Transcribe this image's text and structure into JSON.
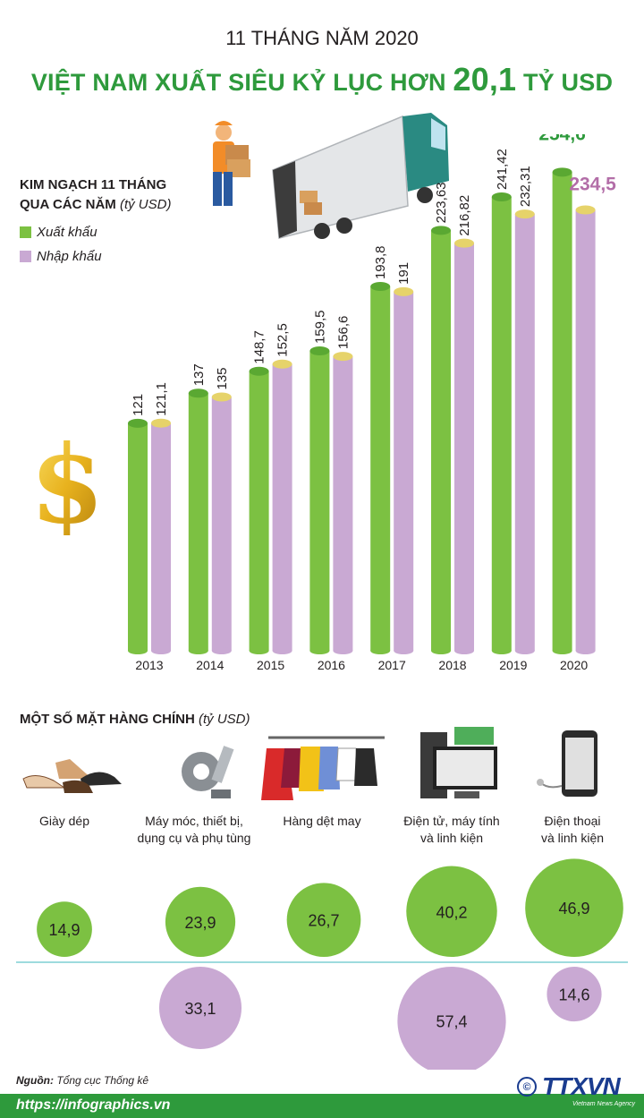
{
  "header": {
    "kicker": "11 THÁNG NĂM 2020",
    "headline_prefix": "VIỆT NAM XUẤT SIÊU KỶ LỤC HƠN",
    "headline_value": "20,1",
    "headline_suffix": "TỶ USD"
  },
  "chart_data": [
    {
      "type": "bar",
      "title": "KIM NGẠCH 11 THÁNG QUA CÁC NĂM",
      "title_line1": "KIM NGẠCH 11 THÁNG",
      "title_line2": "QUA CÁC NĂM",
      "unit": "(tỷ USD)",
      "categories": [
        "2013",
        "2014",
        "2015",
        "2016",
        "2017",
        "2018",
        "2019",
        "2020"
      ],
      "series": [
        {
          "name": "Xuất khẩu",
          "color": "#7cc142",
          "values": [
            121,
            137,
            148.7,
            159.5,
            193.8,
            223.63,
            241.42,
            254.6
          ],
          "labels": [
            "121",
            "137",
            "148,7",
            "159,5",
            "193,8",
            "223,63",
            "241,42",
            "254,6"
          ]
        },
        {
          "name": "Nhập khẩu",
          "color": "#c9a9d3",
          "values": [
            121.1,
            135,
            152.5,
            156.6,
            191,
            216.82,
            232.31,
            234.5
          ],
          "labels": [
            "121,1",
            "135",
            "152,5",
            "156,6",
            "191",
            "216,82",
            "232,31",
            "234,5"
          ]
        }
      ],
      "cap_color": "#e6d36a",
      "highlight_colors": {
        "export": "#2e9a3c",
        "import": "#b36ea8"
      }
    },
    {
      "type": "bubble",
      "title": "MỘT SỐ MẶT HÀNG CHÍNH",
      "unit": "(tỷ USD)",
      "categories": [
        {
          "label": "Giày dép",
          "icon": "shoes-icon"
        },
        {
          "label": "Máy móc, thiết bị, dụng cụ và phụ tùng",
          "icon": "gear-icon"
        },
        {
          "label": "Hàng dệt may",
          "icon": "clothes-icon"
        },
        {
          "label": "Điện tử, máy tính và linh kiện",
          "icon": "computer-icon"
        },
        {
          "label": "Điện thoại và linh kiện",
          "icon": "phone-icon"
        }
      ],
      "series": [
        {
          "name": "Xuất khẩu",
          "color": "#7cc142",
          "values": [
            14.9,
            23.9,
            26.7,
            40.2,
            46.9
          ],
          "labels": [
            "14,9",
            "23,9",
            "26,7",
            "40,2",
            "46,9"
          ]
        },
        {
          "name": "Nhập khẩu",
          "color": "#c9a9d3",
          "values": [
            null,
            33.1,
            null,
            57.4,
            14.6
          ],
          "labels": [
            null,
            "33,1",
            null,
            "57,4",
            "14,6"
          ]
        }
      ]
    }
  ],
  "category_lines": [
    [
      "Giày dép"
    ],
    [
      "Máy móc, thiết bị,",
      "dụng cụ và phụ tùng"
    ],
    [
      "Hàng dệt may"
    ],
    [
      "Điện tử, máy tính",
      "và linh kiện"
    ],
    [
      "Điện thoại",
      "và linh kiện"
    ]
  ],
  "legend": [
    {
      "label": "Xuất khẩu",
      "color": "#7cc142"
    },
    {
      "label": "Nhập khẩu",
      "color": "#c9a9d3"
    }
  ],
  "footer": {
    "source_label": "Nguồn:",
    "source_text": "Tổng cục Thống kê",
    "url": "https://infographics.vn",
    "logo": "TTXVN",
    "logo_sub": "Vietnam News Agency",
    "copyright": "©"
  }
}
